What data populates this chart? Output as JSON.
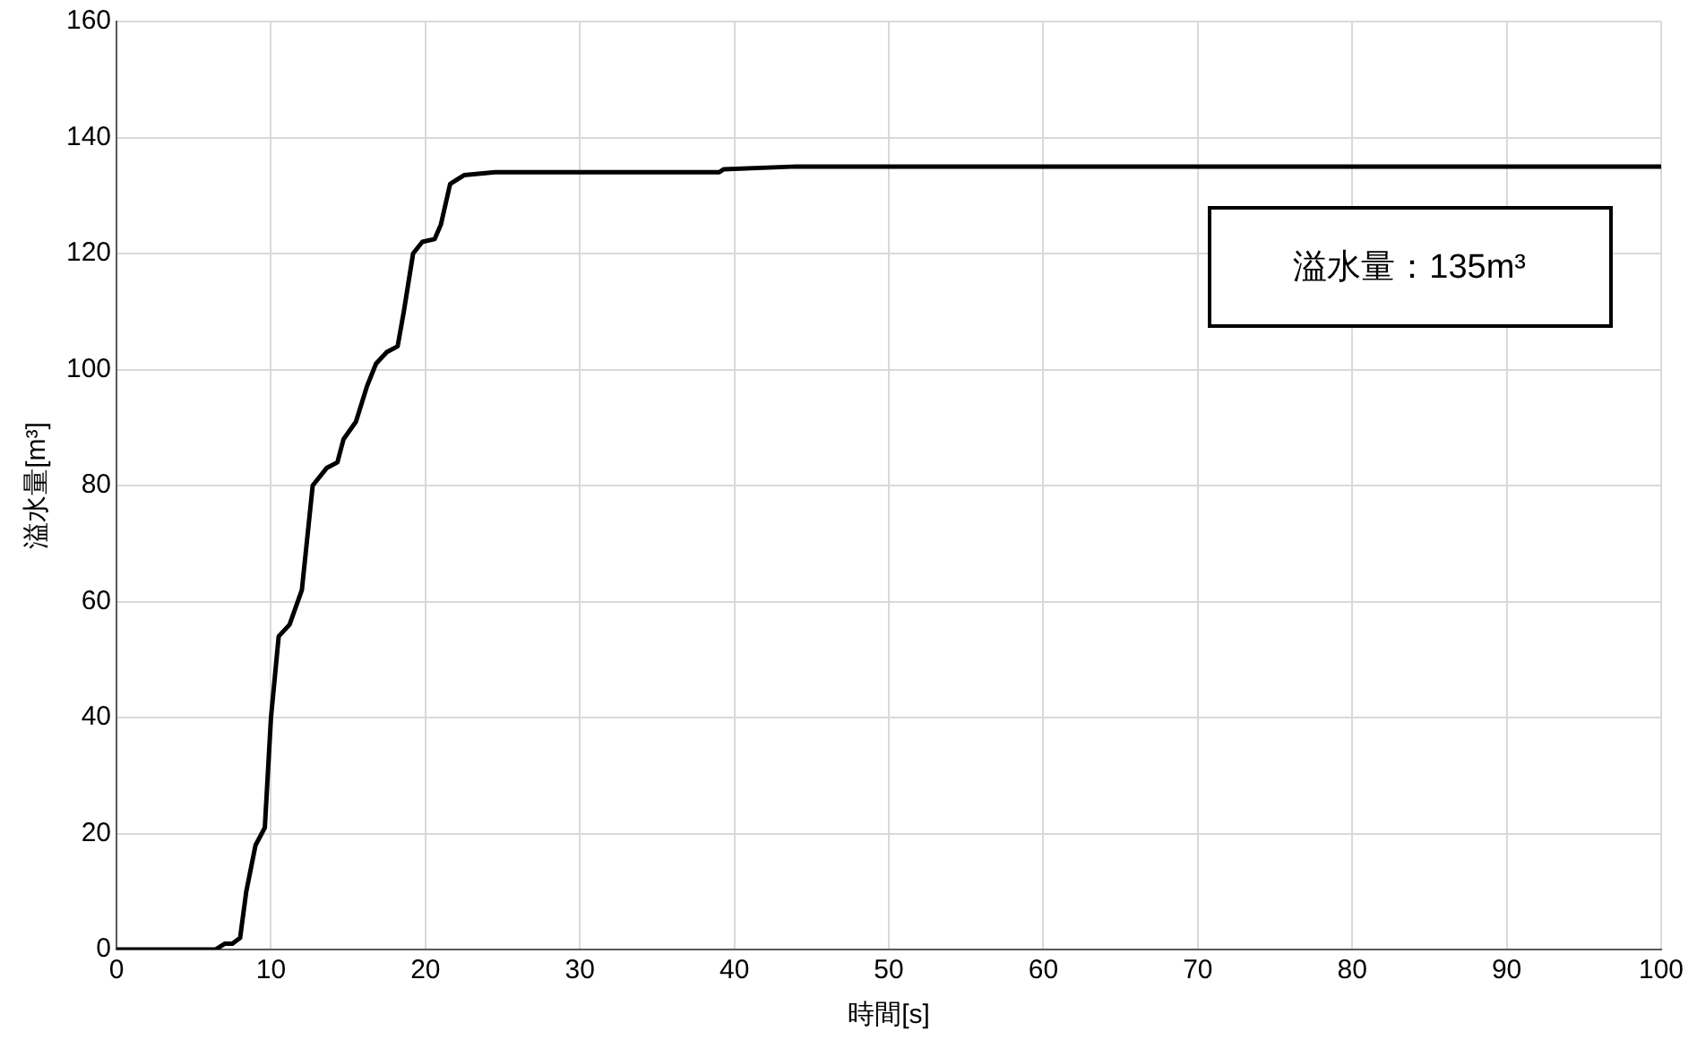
{
  "chart_data": {
    "type": "line",
    "xlabel": "時間[s]",
    "ylabel": "溢水量[m³]",
    "annotations": [
      "溢水量：135m³"
    ],
    "x": [
      0,
      6.4,
      7,
      7.5,
      8,
      8.4,
      9,
      9.6,
      10,
      10.5,
      11.2,
      12,
      12.7,
      13.6,
      14.3,
      14.7,
      15.5,
      16.2,
      16.8,
      17.5,
      18.2,
      18.6,
      19.2,
      19.8,
      20.6,
      21,
      21.6,
      22.5,
      24.5,
      39,
      39.3,
      44,
      100
    ],
    "series": [
      {
        "color": "#000000",
        "values": [
          0,
          0,
          1,
          1,
          2,
          10,
          18,
          21,
          40,
          54,
          56,
          62,
          80,
          83,
          84,
          88,
          91,
          97,
          101,
          103,
          104,
          110,
          120,
          122,
          122.5,
          125,
          132,
          133.5,
          134,
          134,
          134.5,
          135,
          135
        ]
      }
    ],
    "xlim": [
      0,
      100
    ],
    "xticks": [
      0,
      10,
      20,
      30,
      40,
      50,
      60,
      70,
      80,
      90,
      100
    ],
    "ylim": [
      0,
      160
    ],
    "yticks": [
      0,
      20,
      40,
      60,
      80,
      100,
      120,
      140,
      160
    ],
    "grid": true,
    "legend": false,
    "marker": "none",
    "line_style": "solid"
  }
}
